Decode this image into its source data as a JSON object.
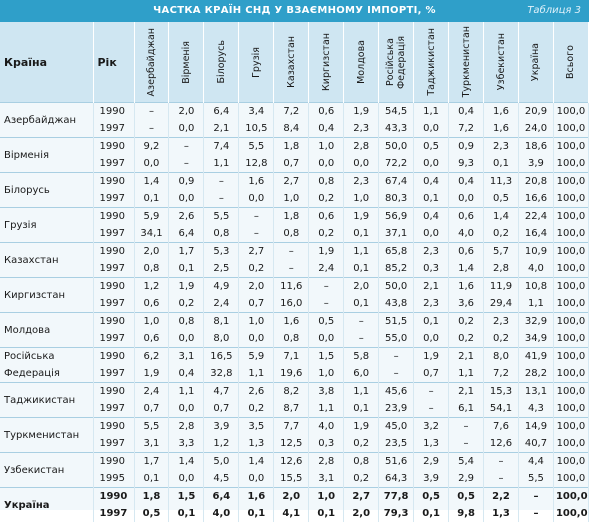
{
  "header": {
    "title": "ЧАСТКА КРАЇН СНД У ВЗАЄМНОМУ ІМПОРТІ, %",
    "label": "Таблиця 3"
  },
  "table": {
    "columns": [
      "Країна",
      "Рік",
      "Азербайджан",
      "Вірменія",
      "Білорусь",
      "Грузія",
      "Казахстан",
      "Киргизстан",
      "Молдова",
      "Російська Федерація",
      "Таджикистан",
      "Туркменистан",
      "Узбекистан",
      "Україна",
      "Всього"
    ],
    "groups": [
      {
        "country": "Азербайджан",
        "rows": [
          {
            "year": "1990",
            "values": [
              "–",
              "2,0",
              "6,4",
              "3,4",
              "7,2",
              "0,6",
              "1,9",
              "54,5",
              "1,1",
              "0,4",
              "1,6",
              "20,9",
              "100,0"
            ]
          },
          {
            "year": "1997",
            "values": [
              "–",
              "0,0",
              "2,1",
              "10,5",
              "8,4",
              "0,4",
              "2,3",
              "43,3",
              "0,0",
              "7,2",
              "1,6",
              "24,0",
              "100,0"
            ]
          }
        ]
      },
      {
        "country": "Вірменія",
        "rows": [
          {
            "year": "1990",
            "values": [
              "9,2",
              "–",
              "7,4",
              "5,5",
              "1,8",
              "1,0",
              "2,8",
              "50,0",
              "0,5",
              "0,9",
              "2,3",
              "18,6",
              "100,0"
            ]
          },
          {
            "year": "1997",
            "values": [
              "0,0",
              "–",
              "1,1",
              "12,8",
              "0,7",
              "0,0",
              "0,0",
              "72,2",
              "0,0",
              "9,3",
              "0,1",
              "3,9",
              "100,0"
            ]
          }
        ]
      },
      {
        "country": "Білорусь",
        "rows": [
          {
            "year": "1990",
            "values": [
              "1,4",
              "0,9",
              "–",
              "1,6",
              "2,7",
              "0,8",
              "2,3",
              "67,4",
              "0,4",
              "0,4",
              "11,3",
              "20,8",
              "100,0"
            ]
          },
          {
            "year": "1997",
            "values": [
              "0,1",
              "0,0",
              "–",
              "0,0",
              "1,0",
              "0,2",
              "1,0",
              "80,3",
              "0,1",
              "0,0",
              "0,5",
              "16,6",
              "100,0"
            ]
          }
        ]
      },
      {
        "country": "Грузія",
        "rows": [
          {
            "year": "1990",
            "values": [
              "5,9",
              "2,6",
              "5,5",
              "–",
              "1,8",
              "0,6",
              "1,9",
              "56,9",
              "0,4",
              "0,6",
              "1,4",
              "22,4",
              "100,0"
            ]
          },
          {
            "year": "1997",
            "values": [
              "34,1",
              "6,4",
              "0,8",
              "–",
              "0,8",
              "0,2",
              "0,1",
              "37,1",
              "0,0",
              "4,0",
              "0,2",
              "16,4",
              "100,0"
            ]
          }
        ]
      },
      {
        "country": "Казахстан",
        "rows": [
          {
            "year": "1990",
            "values": [
              "2,0",
              "1,7",
              "5,3",
              "2,7",
              "–",
              "1,9",
              "1,1",
              "65,8",
              "2,3",
              "0,6",
              "5,7",
              "10,9",
              "100,0"
            ]
          },
          {
            "year": "1997",
            "values": [
              "0,8",
              "0,1",
              "2,5",
              "0,2",
              "–",
              "2,4",
              "0,1",
              "85,2",
              "0,3",
              "1,4",
              "2,8",
              "4,0",
              "100,0"
            ]
          }
        ]
      },
      {
        "country": "Киргизстан",
        "rows": [
          {
            "year": "1990",
            "values": [
              "1,2",
              "1,9",
              "4,9",
              "2,0",
              "11,6",
              "–",
              "2,0",
              "50,0",
              "2,1",
              "1,6",
              "11,9",
              "10,8",
              "100,0"
            ]
          },
          {
            "year": "1997",
            "values": [
              "0,6",
              "0,2",
              "2,4",
              "0,7",
              "16,0",
              "–",
              "0,1",
              "43,8",
              "2,3",
              "3,6",
              "29,4",
              "1,1",
              "100,0"
            ]
          }
        ]
      },
      {
        "country": "Молдова",
        "rows": [
          {
            "year": "1990",
            "values": [
              "1,0",
              "0,8",
              "8,1",
              "1,0",
              "1,6",
              "0,5",
              "–",
              "51,5",
              "0,1",
              "0,2",
              "2,3",
              "32,9",
              "100,0"
            ]
          },
          {
            "year": "1997",
            "values": [
              "0,6",
              "0,0",
              "8,0",
              "0,0",
              "0,8",
              "0,0",
              "–",
              "55,0",
              "0,0",
              "0,2",
              "0,2",
              "34,9",
              "100,0"
            ]
          }
        ]
      },
      {
        "country": "Російська Федерація",
        "rows": [
          {
            "year": "1990",
            "values": [
              "6,2",
              "3,1",
              "16,5",
              "5,9",
              "7,1",
              "1,5",
              "5,8",
              "–",
              "1,9",
              "2,1",
              "8,0",
              "41,9",
              "100,0"
            ]
          },
          {
            "year": "1997",
            "values": [
              "1,9",
              "0,4",
              "32,8",
              "1,1",
              "19,6",
              "1,0",
              "6,0",
              "–",
              "0,7",
              "1,1",
              "7,2",
              "28,2",
              "100,0"
            ]
          }
        ]
      },
      {
        "country": "Таджикистан",
        "rows": [
          {
            "year": "1990",
            "values": [
              "2,4",
              "1,1",
              "4,7",
              "2,6",
              "8,2",
              "3,8",
              "1,1",
              "45,6",
              "–",
              "2,1",
              "15,3",
              "13,1",
              "100,0"
            ]
          },
          {
            "year": "1997",
            "values": [
              "0,7",
              "0,0",
              "0,7",
              "0,2",
              "8,7",
              "1,1",
              "0,1",
              "23,9",
              "–",
              "6,1",
              "54,1",
              "4,3",
              "100,0"
            ]
          }
        ]
      },
      {
        "country": "Туркменистан",
        "rows": [
          {
            "year": "1990",
            "values": [
              "5,5",
              "2,8",
              "3,9",
              "3,5",
              "7,7",
              "4,0",
              "1,9",
              "45,0",
              "3,2",
              "–",
              "7,6",
              "14,9",
              "100,0"
            ]
          },
          {
            "year": "1997",
            "values": [
              "3,1",
              "3,3",
              "1,2",
              "1,3",
              "12,5",
              "0,3",
              "0,2",
              "23,5",
              "1,3",
              "–",
              "12,6",
              "40,7",
              "100,0"
            ]
          }
        ]
      },
      {
        "country": "Узбекистан",
        "rows": [
          {
            "year": "1990",
            "values": [
              "1,7",
              "1,4",
              "5,0",
              "1,4",
              "12,6",
              "2,8",
              "0,8",
              "51,6",
              "2,9",
              "5,4",
              "–",
              "4,4",
              "100,0"
            ]
          },
          {
            "year": "1995",
            "values": [
              "0,1",
              "0,0",
              "4,5",
              "0,0",
              "15,5",
              "3,1",
              "0,2",
              "64,3",
              "3,9",
              "2,9",
              "–",
              "5,5",
              "100,0"
            ]
          }
        ]
      },
      {
        "country": "Україна",
        "rows": [
          {
            "year": "1990",
            "values": [
              "1,8",
              "1,5",
              "6,4",
              "1,6",
              "2,0",
              "1,0",
              "2,7",
              "77,8",
              "0,5",
              "0,5",
              "2,2",
              "–",
              "100,0"
            ]
          },
          {
            "year": "1997",
            "values": [
              "0,5",
              "0,1",
              "4,0",
              "0,1",
              "4,1",
              "0,1",
              "2,0",
              "79,3",
              "0,1",
              "9,8",
              "1,3",
              "–",
              "100,0"
            ]
          }
        ]
      }
    ]
  }
}
